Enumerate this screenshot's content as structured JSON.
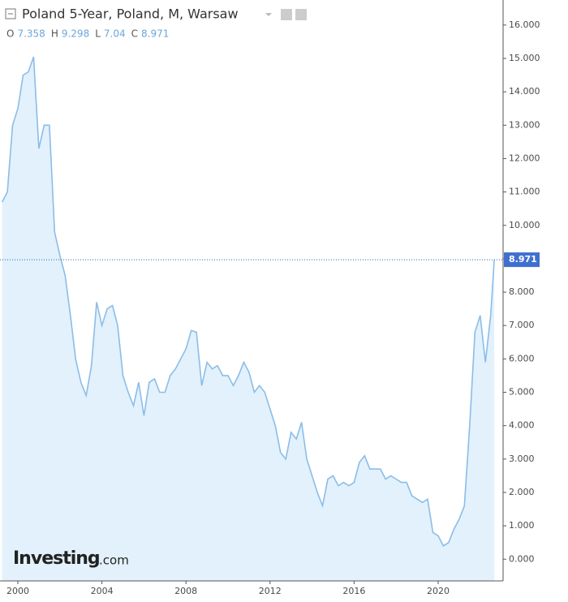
{
  "chart_data": {
    "type": "area",
    "title": "Poland 5-Year, Poland, M, Warsaw",
    "ohlc": [
      {
        "name": "O",
        "value": 7.358
      },
      {
        "name": "H",
        "value": 9.298
      },
      {
        "name": "L",
        "value": 7.04
      },
      {
        "name": "C",
        "value": 8.971
      }
    ],
    "last_value": 8.971,
    "logo": {
      "brand": "Investing",
      "suffix": ".com"
    },
    "x": [
      1999.25,
      1999.5,
      1999.75,
      2000,
      2000.25,
      2000.5,
      2000.75,
      2001,
      2001.25,
      2001.5,
      2001.75,
      2002,
      2002.25,
      2002.5,
      2002.75,
      2003,
      2003.25,
      2003.5,
      2003.75,
      2004,
      2004.25,
      2004.5,
      2004.75,
      2005,
      2005.25,
      2005.5,
      2005.75,
      2006,
      2006.25,
      2006.5,
      2006.75,
      2007,
      2007.25,
      2007.5,
      2007.75,
      2008,
      2008.25,
      2008.5,
      2008.75,
      2009,
      2009.25,
      2009.5,
      2009.75,
      2010,
      2010.25,
      2010.5,
      2010.75,
      2011,
      2011.25,
      2011.5,
      2011.75,
      2012,
      2012.25,
      2012.5,
      2012.75,
      2013,
      2013.25,
      2013.5,
      2013.75,
      2014,
      2014.25,
      2014.5,
      2014.75,
      2015,
      2015.25,
      2015.5,
      2015.75,
      2016,
      2016.25,
      2016.5,
      2016.75,
      2017,
      2017.25,
      2017.5,
      2017.75,
      2018,
      2018.25,
      2018.5,
      2018.75,
      2019,
      2019.25,
      2019.5,
      2019.75,
      2020,
      2020.25,
      2020.5,
      2020.75,
      2021,
      2021.25,
      2021.5,
      2021.75,
      2022,
      2022.25,
      2022.5,
      2022.67
    ],
    "series": [
      {
        "name": "Poland 5-Year",
        "color": "#8bbde8",
        "values": [
          10.7,
          11.0,
          13.0,
          13.5,
          14.5,
          14.6,
          15.05,
          12.3,
          13.0,
          13.0,
          9.8,
          9.1,
          8.5,
          7.3,
          6.0,
          5.3,
          4.9,
          5.8,
          7.7,
          7.0,
          7.5,
          7.6,
          7.0,
          5.5,
          5.0,
          4.6,
          5.3,
          4.3,
          5.3,
          5.4,
          5.0,
          5.0,
          5.5,
          5.7,
          6.0,
          6.3,
          6.85,
          6.8,
          5.2,
          5.9,
          5.7,
          5.8,
          5.5,
          5.5,
          5.2,
          5.5,
          5.9,
          5.6,
          5.0,
          5.2,
          5.0,
          4.5,
          4.0,
          3.2,
          3.0,
          3.8,
          3.6,
          4.1,
          3.0,
          2.5,
          2.0,
          1.6,
          2.4,
          2.5,
          2.2,
          2.3,
          2.2,
          2.3,
          2.9,
          3.1,
          2.7,
          2.7,
          2.7,
          2.4,
          2.5,
          2.4,
          2.3,
          2.3,
          1.9,
          1.8,
          1.7,
          1.8,
          0.8,
          0.7,
          0.4,
          0.5,
          0.9,
          1.2,
          1.6,
          4.0,
          6.8,
          7.3,
          5.9,
          7.3,
          8.971
        ]
      }
    ],
    "xlim": [
      1999.15,
      2023.09
    ],
    "xticks": [
      2000,
      2004,
      2008,
      2012,
      2016,
      2020
    ],
    "ylim": [
      -0.65,
      16.75
    ],
    "yticks": [
      {
        "value": 0,
        "label": "0.000"
      },
      {
        "value": 1,
        "label": "1.000"
      },
      {
        "value": 2,
        "label": "2.000"
      },
      {
        "value": 3,
        "label": "3.000"
      },
      {
        "value": 4,
        "label": "4.000"
      },
      {
        "value": 5,
        "label": "5.000"
      },
      {
        "value": 6,
        "label": "6.000"
      },
      {
        "value": 7,
        "label": "7.000"
      },
      {
        "value": 8,
        "label": "8.000"
      },
      {
        "value": 9,
        "label": "9.000"
      },
      {
        "value": 10,
        "label": "10.000"
      },
      {
        "value": 11,
        "label": "11.000"
      },
      {
        "value": 12,
        "label": "12.000"
      },
      {
        "value": 13,
        "label": "13.000"
      },
      {
        "value": 14,
        "label": "14.000"
      },
      {
        "value": 15,
        "label": "15.000"
      },
      {
        "value": 16,
        "label": "16.000"
      }
    ]
  }
}
